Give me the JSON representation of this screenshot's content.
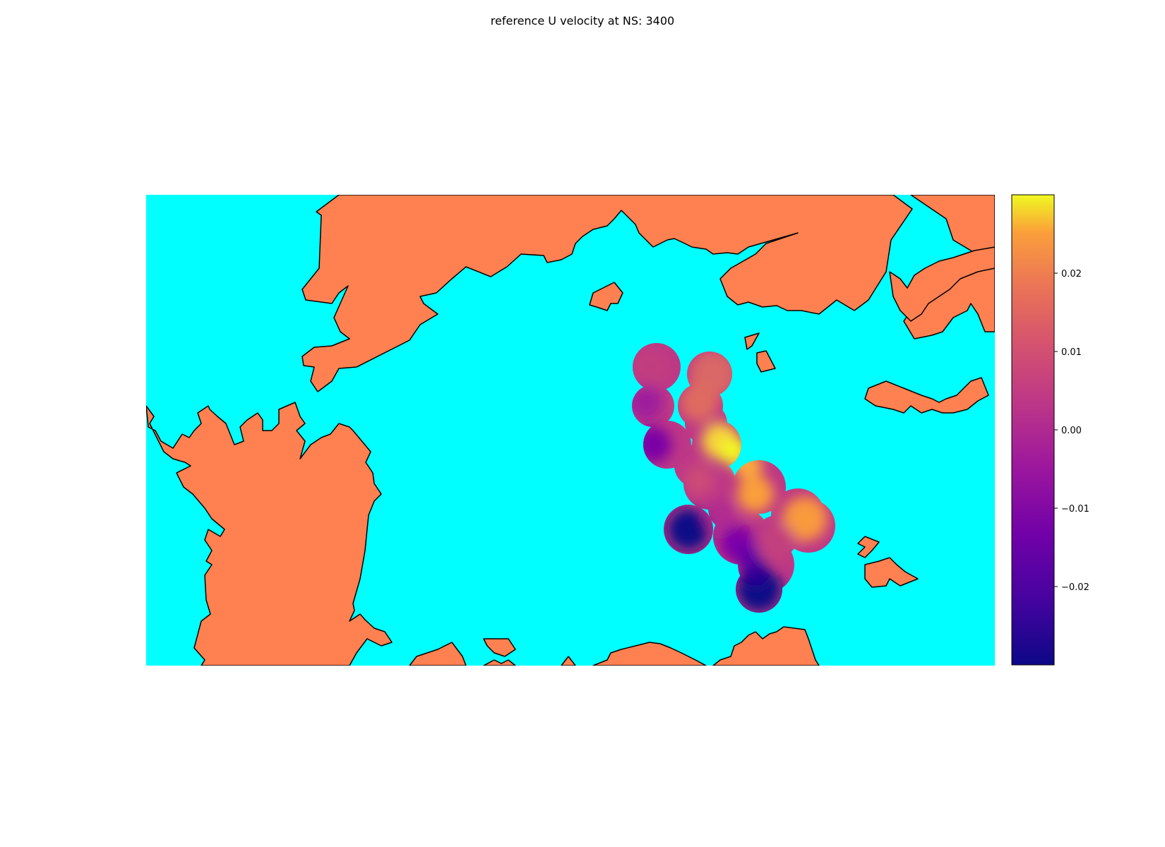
{
  "title": "reference U velocity at NS: 3400",
  "colors": {
    "ocean": "#00ffff",
    "land": "#ff8050",
    "coastline": "#000000",
    "colormap": "plasma"
  },
  "chart_data": {
    "type": "heatmap",
    "title": "reference U velocity at NS: 3400",
    "xlabel": "",
    "ylabel": "",
    "colorbar": {
      "vmin": -0.03,
      "vmax": 0.03,
      "ticks": [
        0.02,
        0.01,
        0.0,
        -0.01,
        -0.02
      ],
      "tick_labels": [
        "0.02",
        "0.01",
        "0.00",
        "−0.01",
        "−0.02"
      ],
      "colormap": "plasma"
    },
    "field_samples": [
      {
        "region": "upper-left lobe",
        "value": -0.006
      },
      {
        "region": "upper-right lobe",
        "value": 0.006
      },
      {
        "region": "left middle",
        "value": -0.02
      },
      {
        "region": "center",
        "value": 0.028
      },
      {
        "region": "center-right",
        "value": 0.016
      },
      {
        "region": "right lobe",
        "value": 0.018
      },
      {
        "region": "lower-left lobe",
        "value": -0.029
      },
      {
        "region": "lower-center",
        "value": -0.015
      },
      {
        "region": "bottom lobe",
        "value": -0.029
      }
    ]
  }
}
